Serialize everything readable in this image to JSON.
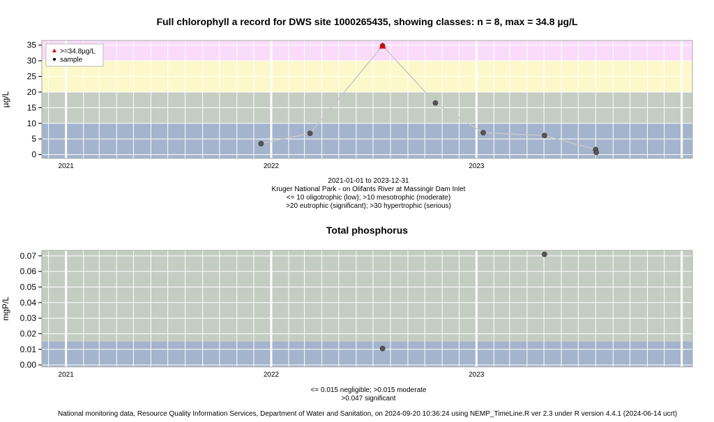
{
  "footer": "National monitoring data, Resource Quality Information Services, Department of Water and Sanitation, on 2024-09-20 10:36:24 using NEMP_TimeLine.R ver 2.3 under R version 4.4.1 (2024-06-14 ucrt)",
  "colors": {
    "panel_border": "#a9a9a9",
    "grid": "#ffffff",
    "point": "#555555",
    "max_point": "#dd0000",
    "line": "#c8c8c8"
  },
  "chart_data": [
    {
      "type": "scatter",
      "title": "Full chlorophyll a record for DWS site 1000265435, showing classes: n = 8, max = 34.8 µg/L",
      "ylabel": "µg/L",
      "xlabel": "",
      "xlim": [
        "2020-11-19",
        "2024-01-20"
      ],
      "ylim": [
        -1.2,
        36.5
      ],
      "x_ticks": [
        {
          "date": "2021-01-01",
          "label": "2021"
        },
        {
          "date": "2022-01-01",
          "label": "2022"
        },
        {
          "date": "2023-01-01",
          "label": "2023"
        }
      ],
      "y_ticks": [
        0,
        5,
        10,
        15,
        20,
        25,
        30,
        35
      ],
      "y_tick_labels": [
        "0",
        "5",
        "10",
        "15",
        "20",
        "25",
        "30",
        "35"
      ],
      "bands": [
        {
          "from": -1.2,
          "to": 10,
          "color": "#a4b4cd"
        },
        {
          "from": 10,
          "to": 20,
          "color": "#c4cdc2"
        },
        {
          "from": 20,
          "to": 30,
          "color": "#fcf8ca"
        },
        {
          "from": 30,
          "to": 36.5,
          "color": "#fadcfa"
        }
      ],
      "grid": true,
      "connect_line": true,
      "series": [
        {
          "name": "sample",
          "points": [
            {
              "x": "2021-12-14",
              "y": 3.5
            },
            {
              "x": "2022-03-11",
              "y": 6.8
            },
            {
              "x": "2022-07-18",
              "y": 34.8
            },
            {
              "x": "2022-10-20",
              "y": 16.5
            },
            {
              "x": "2023-01-13",
              "y": 7.0
            },
            {
              "x": "2023-05-02",
              "y": 6.1
            },
            {
              "x": "2023-08-01",
              "y": 1.6
            },
            {
              "x": "2023-08-02",
              "y": 0.7
            }
          ]
        },
        {
          "name": ">=34.8µg/L",
          "points": [
            {
              "x": "2022-07-18",
              "y": 34.8
            }
          ]
        }
      ],
      "legend": {
        "position": "top-left",
        "items": [
          {
            "label": ">=34.8µg/L",
            "symbol": "triangle",
            "color": "#dd0000"
          },
          {
            "label": "sample",
            "symbol": "circle",
            "color": "#000000"
          }
        ]
      },
      "notes": [
        "2021-01-01 to 2023-12-31",
        "Kruger National Park - on Olifants River at Massingir Dam Inlet",
        "<= 10 oligotrophic (low); >10 mesotrophic (moderate)",
        ">20 eutrophic (significant); >30 hypertrophic (serious)"
      ]
    },
    {
      "type": "scatter",
      "title": "Total phosphorus",
      "ylabel": "mgP/L",
      "xlabel": "",
      "xlim": [
        "2020-11-19",
        "2024-01-20"
      ],
      "ylim": [
        -0.0013,
        0.0735
      ],
      "x_ticks": [
        {
          "date": "2021-01-01",
          "label": "2021"
        },
        {
          "date": "2022-01-01",
          "label": "2022"
        },
        {
          "date": "2023-01-01",
          "label": "2023"
        }
      ],
      "y_ticks": [
        0,
        0.01,
        0.02,
        0.03,
        0.04,
        0.05,
        0.06,
        0.07
      ],
      "y_tick_labels": [
        "0.00",
        "0.01",
        "0.02",
        "0.03",
        "0.04",
        "0.05",
        "0.06",
        "0.07"
      ],
      "bands": [
        {
          "from": -0.0013,
          "to": 0.015,
          "color": "#a4b4cd"
        },
        {
          "from": 0.015,
          "to": 0.0735,
          "color": "#c4cdc2"
        }
      ],
      "grid": true,
      "connect_line": false,
      "series": [
        {
          "name": "sample",
          "points": [
            {
              "x": "2022-07-18",
              "y": 0.0105
            },
            {
              "x": "2023-05-02",
              "y": 0.071
            }
          ]
        }
      ],
      "notes": [
        "<= 0.015 negligible; >0.015 moderate",
        ">0.047 significant"
      ]
    }
  ]
}
